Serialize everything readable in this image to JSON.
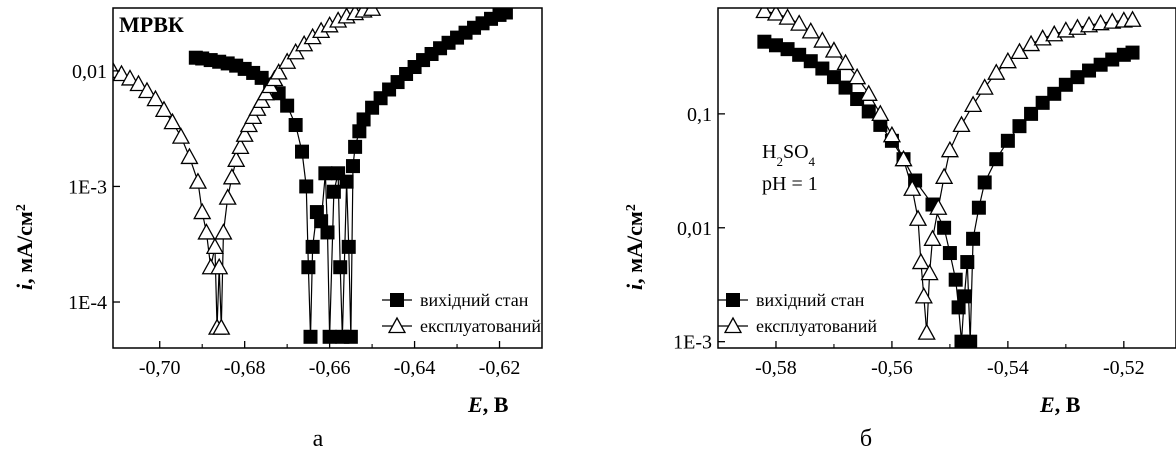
{
  "chart_data": [
    {
      "type": "scatter",
      "panel": "а",
      "annotation": "МРВК",
      "xlabel_italic": "E",
      "xlabel_rest": ", В",
      "ylabel_italic": "i",
      "ylabel_rest": ", мА/см",
      "ylabel_sup": "2",
      "x_scale": "linear",
      "y_scale": "log",
      "xlim": [
        -0.711,
        -0.61
      ],
      "ylim": [
        4e-05,
        0.035
      ],
      "x_ticks": [
        -0.7,
        -0.68,
        -0.66,
        -0.64,
        -0.62
      ],
      "x_tick_labels": [
        "-0,70",
        "-0,68",
        "-0,66",
        "-0,64",
        "-0,62"
      ],
      "y_ticks": [
        0.0001,
        0.001,
        0.01
      ],
      "y_tick_labels": [
        "1E-4",
        "1E-3",
        "0,01"
      ],
      "legend_position": "bottom-right",
      "grid": false,
      "series": [
        {
          "name": "вихідний стан",
          "marker": "filled-square",
          "points": [
            [
              -0.6915,
              0.013
            ],
            [
              -0.69,
              0.0128
            ],
            [
              -0.688,
              0.0124
            ],
            [
              -0.686,
              0.012
            ],
            [
              -0.684,
              0.0116
            ],
            [
              -0.682,
              0.0111
            ],
            [
              -0.68,
              0.0104
            ],
            [
              -0.678,
              0.0096
            ],
            [
              -0.676,
              0.0087
            ],
            [
              -0.674,
              0.0076
            ],
            [
              -0.672,
              0.0064
            ],
            [
              -0.67,
              0.005
            ],
            [
              -0.668,
              0.0034
            ],
            [
              -0.6665,
              0.002
            ],
            [
              -0.6655,
              0.001
            ],
            [
              -0.665,
              0.0002
            ],
            [
              -0.6645,
              5e-05
            ],
            [
              -0.664,
              0.0003
            ],
            [
              -0.663,
              0.0006
            ],
            [
              -0.662,
              0.0005
            ],
            [
              -0.661,
              0.0013
            ],
            [
              -0.6605,
              0.0004
            ],
            [
              -0.66,
              5e-05
            ],
            [
              -0.659,
              0.0009
            ],
            [
              -0.658,
              0.0013
            ],
            [
              -0.6575,
              0.0002
            ],
            [
              -0.657,
              5e-05
            ],
            [
              -0.656,
              0.0011
            ],
            [
              -0.6555,
              0.0003
            ],
            [
              -0.655,
              5e-05
            ],
            [
              -0.6545,
              0.0015
            ],
            [
              -0.654,
              0.0022
            ],
            [
              -0.653,
              0.003
            ],
            [
              -0.652,
              0.0038
            ],
            [
              -0.65,
              0.0048
            ],
            [
              -0.648,
              0.0058
            ],
            [
              -0.646,
              0.0069
            ],
            [
              -0.644,
              0.008
            ],
            [
              -0.642,
              0.0094
            ],
            [
              -0.64,
              0.0108
            ],
            [
              -0.638,
              0.0124
            ],
            [
              -0.636,
              0.014
            ],
            [
              -0.634,
              0.0157
            ],
            [
              -0.632,
              0.0175
            ],
            [
              -0.63,
              0.0194
            ],
            [
              -0.628,
              0.0214
            ],
            [
              -0.626,
              0.0236
            ],
            [
              -0.624,
              0.0258
            ],
            [
              -0.622,
              0.0282
            ],
            [
              -0.62,
              0.0305
            ],
            [
              -0.6185,
              0.032
            ]
          ]
        },
        {
          "name": "експлуатований",
          "marker": "open-triangle",
          "points": [
            [
              -0.711,
              0.01
            ],
            [
              -0.709,
              0.0094
            ],
            [
              -0.707,
              0.0086
            ],
            [
              -0.705,
              0.0077
            ],
            [
              -0.703,
              0.0067
            ],
            [
              -0.701,
              0.0057
            ],
            [
              -0.699,
              0.0046
            ],
            [
              -0.697,
              0.0036
            ],
            [
              -0.695,
              0.0027
            ],
            [
              -0.693,
              0.0018
            ],
            [
              -0.691,
              0.0011
            ],
            [
              -0.69,
              0.0006
            ],
            [
              -0.689,
              0.0004
            ],
            [
              -0.688,
              0.0002
            ],
            [
              -0.687,
              0.0003
            ],
            [
              -0.6865,
              6e-05
            ],
            [
              -0.686,
              0.0002
            ],
            [
              -0.6855,
              6e-05
            ],
            [
              -0.685,
              0.0004
            ],
            [
              -0.684,
              0.0008
            ],
            [
              -0.683,
              0.0012
            ],
            [
              -0.682,
              0.0017
            ],
            [
              -0.681,
              0.0022
            ],
            [
              -0.68,
              0.0028
            ],
            [
              -0.679,
              0.0034
            ],
            [
              -0.678,
              0.004
            ],
            [
              -0.677,
              0.0047
            ],
            [
              -0.676,
              0.0055
            ],
            [
              -0.675,
              0.0064
            ],
            [
              -0.674,
              0.0074
            ],
            [
              -0.673,
              0.0085
            ],
            [
              -0.672,
              0.0097
            ],
            [
              -0.67,
              0.012
            ],
            [
              -0.668,
              0.0145
            ],
            [
              -0.666,
              0.017
            ],
            [
              -0.664,
              0.0196
            ],
            [
              -0.662,
              0.0222
            ],
            [
              -0.66,
              0.0248
            ],
            [
              -0.658,
              0.0273
            ],
            [
              -0.656,
              0.0296
            ],
            [
              -0.654,
              0.0316
            ],
            [
              -0.652,
              0.0333
            ],
            [
              -0.65,
              0.0345
            ]
          ]
        }
      ]
    },
    {
      "type": "scatter",
      "panel": "б",
      "annotation_main": "H",
      "annotation_sub1": "2",
      "annotation_mid": "SO",
      "annotation_sub2": "4",
      "annotation_line2": "pH = 1",
      "xlabel_italic": "E",
      "xlabel_rest": ", В",
      "ylabel_italic": "i",
      "ylabel_rest": ", мА/см",
      "ylabel_sup": "2",
      "x_scale": "linear",
      "y_scale": "log",
      "xlim": [
        -0.59,
        -0.511
      ],
      "ylim": [
        0.00088,
        0.85
      ],
      "x_ticks": [
        -0.58,
        -0.56,
        -0.54,
        -0.52
      ],
      "x_tick_labels": [
        "-0,58",
        "-0,56",
        "-0,54",
        "-0,52"
      ],
      "y_ticks": [
        0.001,
        0.01,
        0.1
      ],
      "y_tick_labels": [
        "1E-3",
        "0,01",
        "0,1"
      ],
      "legend_position": "bottom-left",
      "grid": false,
      "series": [
        {
          "name": "вихідний стан",
          "marker": "filled-square",
          "points": [
            [
              -0.582,
              0.43
            ],
            [
              -0.58,
              0.4
            ],
            [
              -0.578,
              0.37
            ],
            [
              -0.576,
              0.33
            ],
            [
              -0.574,
              0.29
            ],
            [
              -0.572,
              0.25
            ],
            [
              -0.57,
              0.21
            ],
            [
              -0.568,
              0.17
            ],
            [
              -0.566,
              0.135
            ],
            [
              -0.564,
              0.105
            ],
            [
              -0.562,
              0.08
            ],
            [
              -0.56,
              0.058
            ],
            [
              -0.558,
              0.04
            ],
            [
              -0.556,
              0.026
            ],
            [
              -0.553,
              0.016
            ],
            [
              -0.551,
              0.01
            ],
            [
              -0.55,
              0.006
            ],
            [
              -0.549,
              0.0035
            ],
            [
              -0.5485,
              0.002
            ],
            [
              -0.548,
              0.001
            ],
            [
              -0.5475,
              0.0025
            ],
            [
              -0.547,
              0.005
            ],
            [
              -0.5465,
              0.001
            ],
            [
              -0.546,
              0.008
            ],
            [
              -0.545,
              0.015
            ],
            [
              -0.544,
              0.025
            ],
            [
              -0.542,
              0.04
            ],
            [
              -0.54,
              0.058
            ],
            [
              -0.538,
              0.078
            ],
            [
              -0.536,
              0.1
            ],
            [
              -0.534,
              0.125
            ],
            [
              -0.532,
              0.15
            ],
            [
              -0.53,
              0.18
            ],
            [
              -0.528,
              0.21
            ],
            [
              -0.526,
              0.24
            ],
            [
              -0.524,
              0.27
            ],
            [
              -0.522,
              0.3
            ],
            [
              -0.52,
              0.33
            ],
            [
              -0.5185,
              0.345
            ]
          ]
        },
        {
          "name": "експлуатований",
          "marker": "open-triangle",
          "points": [
            [
              -0.582,
              0.8
            ],
            [
              -0.58,
              0.76
            ],
            [
              -0.578,
              0.7
            ],
            [
              -0.576,
              0.62
            ],
            [
              -0.574,
              0.53
            ],
            [
              -0.572,
              0.44
            ],
            [
              -0.57,
              0.36
            ],
            [
              -0.568,
              0.28
            ],
            [
              -0.566,
              0.21
            ],
            [
              -0.564,
              0.15
            ],
            [
              -0.562,
              0.1
            ],
            [
              -0.56,
              0.065
            ],
            [
              -0.558,
              0.04
            ],
            [
              -0.5565,
              0.022
            ],
            [
              -0.5555,
              0.012
            ],
            [
              -0.555,
              0.005
            ],
            [
              -0.5545,
              0.0025
            ],
            [
              -0.554,
              0.0012
            ],
            [
              -0.5535,
              0.004
            ],
            [
              -0.553,
              0.008
            ],
            [
              -0.552,
              0.015
            ],
            [
              -0.551,
              0.028
            ],
            [
              -0.55,
              0.048
            ],
            [
              -0.548,
              0.08
            ],
            [
              -0.546,
              0.12
            ],
            [
              -0.544,
              0.17
            ],
            [
              -0.542,
              0.23
            ],
            [
              -0.54,
              0.29
            ],
            [
              -0.538,
              0.35
            ],
            [
              -0.536,
              0.41
            ],
            [
              -0.534,
              0.46
            ],
            [
              -0.532,
              0.5
            ],
            [
              -0.53,
              0.54
            ],
            [
              -0.528,
              0.57
            ],
            [
              -0.526,
              0.6
            ],
            [
              -0.524,
              0.625
            ],
            [
              -0.522,
              0.645
            ],
            [
              -0.52,
              0.66
            ],
            [
              -0.5185,
              0.67
            ]
          ]
        }
      ]
    }
  ]
}
